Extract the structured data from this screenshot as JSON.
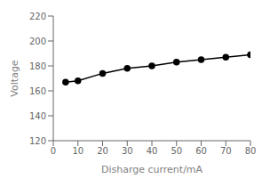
{
  "chart_data": {
    "type": "line",
    "x": [
      5,
      10,
      20,
      30,
      40,
      50,
      60,
      70,
      80
    ],
    "values": [
      167,
      168,
      174,
      178,
      180,
      183,
      185,
      187,
      189
    ],
    "xlabel": "Disharge current/mA",
    "ylabel": "Voltage",
    "xlim": [
      0,
      80
    ],
    "ylim": [
      120,
      220
    ],
    "xticks": [
      0,
      10,
      20,
      30,
      40,
      50,
      60,
      70,
      80
    ],
    "yticks": [
      120,
      140,
      160,
      180,
      200,
      220
    ],
    "color": "#000000",
    "marker": "circle",
    "grid": false
  }
}
